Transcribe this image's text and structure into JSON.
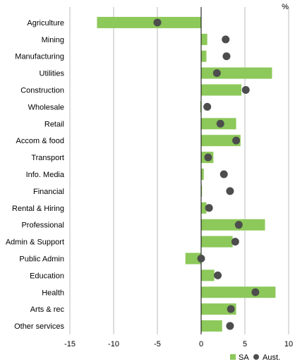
{
  "chart_data": {
    "type": "bar",
    "orientation": "horizontal",
    "unit_label": "%",
    "categories": [
      "Agriculture",
      "Mining",
      "Manufacturing",
      "Utilities",
      "Construction",
      "Wholesale",
      "Retail",
      "Accom & food",
      "Transport",
      "Info. Media",
      "Financial",
      "Rental & Hiring",
      "Professional",
      "Admin & Support",
      "Public Admin",
      "Education",
      "Health",
      "Arts & rec",
      "Other services"
    ],
    "series": [
      {
        "name": "SA",
        "kind": "bar",
        "color": "#8dc85a",
        "values": [
          -11.9,
          0.7,
          0.6,
          8.1,
          4.6,
          -0.1,
          4.0,
          4.5,
          1.4,
          0.3,
          0.1,
          0.6,
          7.3,
          3.6,
          -1.8,
          1.5,
          8.5,
          4.0,
          2.4
        ]
      },
      {
        "name": "Aust.",
        "kind": "dot",
        "color": "#4d4d4d",
        "values": [
          -5.0,
          2.8,
          2.9,
          1.8,
          5.1,
          0.7,
          2.2,
          4.0,
          0.8,
          2.6,
          3.3,
          0.9,
          4.3,
          3.9,
          0.0,
          1.9,
          6.2,
          3.4,
          3.3
        ]
      }
    ],
    "xlim": [
      -15,
      10
    ],
    "xticks": [
      -15,
      -10,
      -5,
      0,
      5,
      10
    ],
    "grid": "vertical",
    "legend": "bottom-right"
  }
}
